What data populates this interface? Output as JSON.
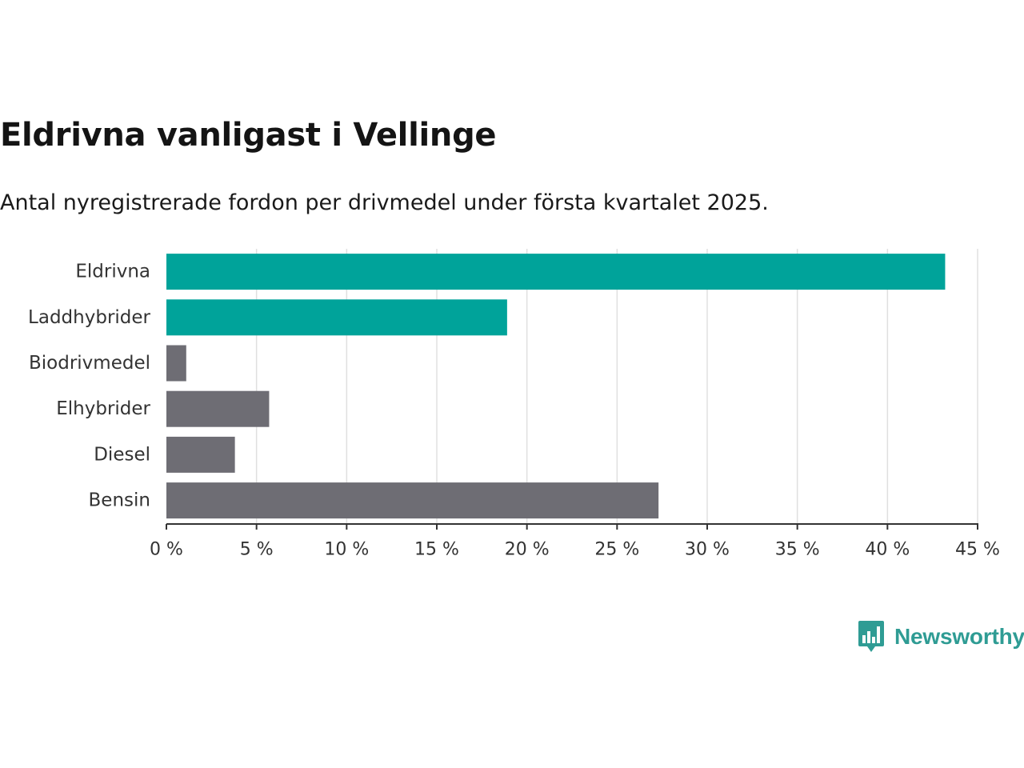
{
  "colors": {
    "highlight": "#00a39a",
    "default": "#6e6d74",
    "grid": "#e0e0e0",
    "axis": "#333333",
    "brand": "#2f9c94"
  },
  "brand": {
    "name": "Newsworthy",
    "icon": "bar-chart-speech-bubble-icon"
  },
  "chart_data": {
    "type": "bar",
    "orientation": "horizontal",
    "title": "Eldrivna vanligast i Vellinge",
    "subtitle": "Antal nyregistrerade fordon per drivmedel under första kvartalet 2025.",
    "xlabel": "",
    "ylabel": "",
    "categories": [
      "Eldrivna",
      "Laddhybrider",
      "Biodrivmedel",
      "Elhybrider",
      "Diesel",
      "Bensin"
    ],
    "values": [
      43.2,
      18.9,
      1.1,
      5.7,
      3.8,
      27.3
    ],
    "highlighted": [
      true,
      true,
      false,
      false,
      false,
      false
    ],
    "xlim": [
      0,
      45
    ],
    "xticks": [
      0,
      5,
      10,
      15,
      20,
      25,
      30,
      35,
      40,
      45
    ],
    "tick_labels": [
      "0 %",
      "5 %",
      "10 %",
      "15 %",
      "20 %",
      "25 %",
      "30 %",
      "35 %",
      "40 %",
      "45 %"
    ],
    "grid": true,
    "legend": "none"
  }
}
